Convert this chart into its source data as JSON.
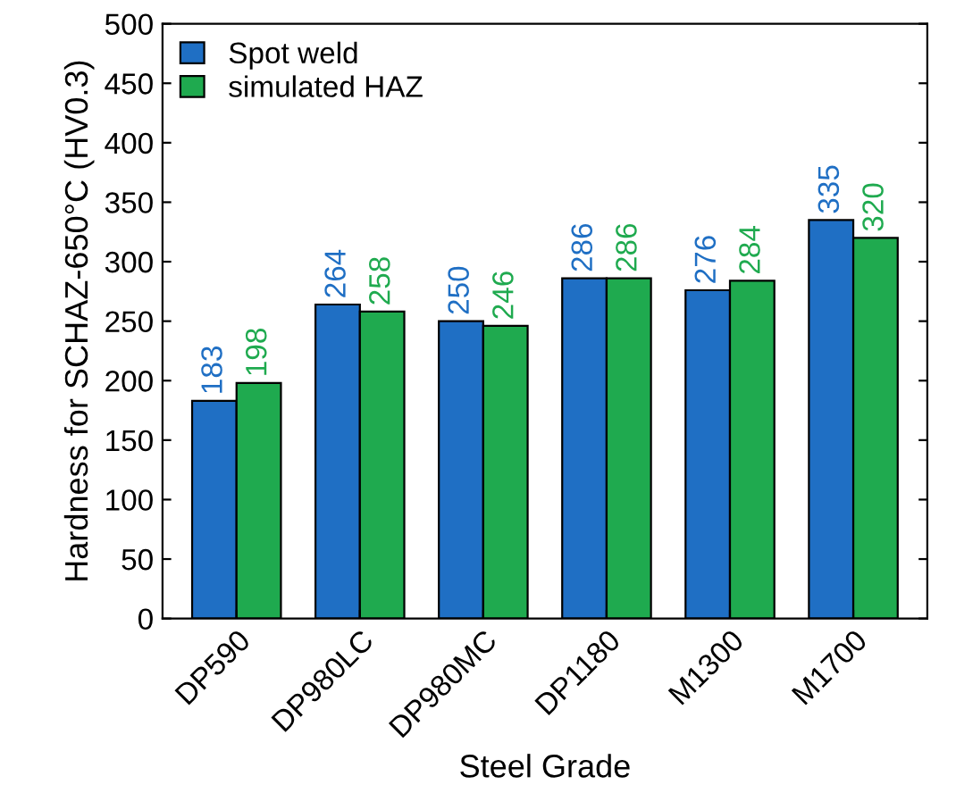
{
  "chart_data": {
    "type": "bar",
    "xlabel": "Steel Grade",
    "ylabel": "Hardness for SCHAZ-650°C (HV0.3)",
    "categories": [
      "DP590",
      "DP980LC",
      "DP980MC",
      "DP1180",
      "M1300",
      "M1700"
    ],
    "series": [
      {
        "name": "Spot weld",
        "color": "#1f6fc4",
        "values": [
          183,
          264,
          250,
          286,
          276,
          335
        ]
      },
      {
        "name": "simulated HAZ",
        "color": "#1faa4f",
        "values": [
          198,
          258,
          246,
          286,
          284,
          320
        ]
      }
    ],
    "ylim": [
      0,
      500
    ],
    "yticks": [
      0,
      50,
      100,
      150,
      200,
      250,
      300,
      350,
      400,
      450,
      500
    ],
    "data_labels": true,
    "legend": "top left",
    "grid": false
  }
}
